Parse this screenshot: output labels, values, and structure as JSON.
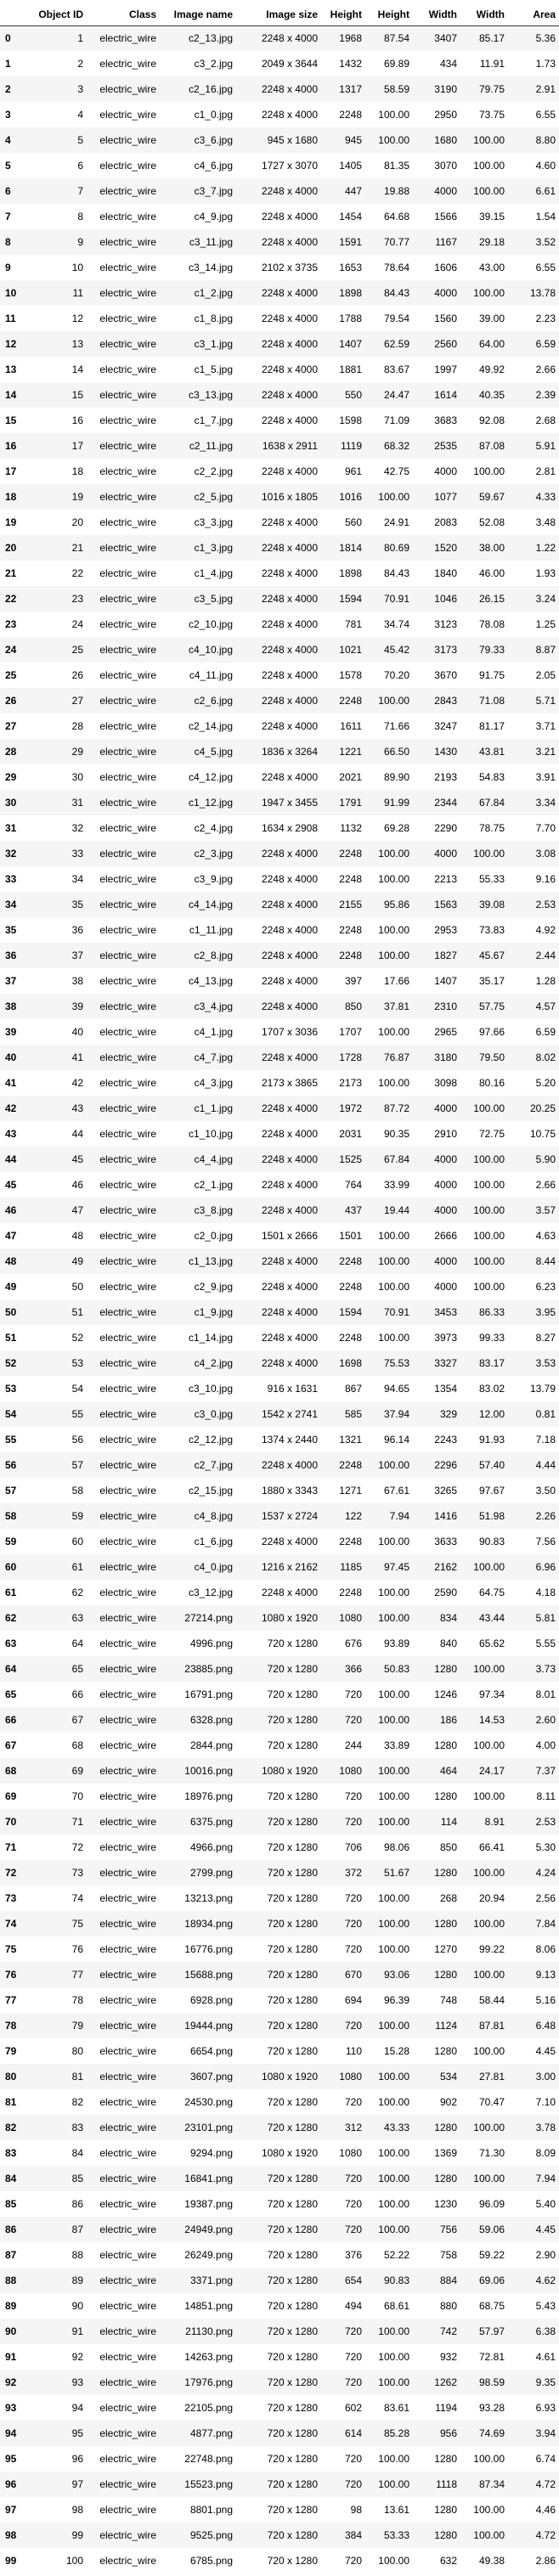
{
  "table": {
    "columns": [
      "",
      "Object ID",
      "Class",
      "Image name",
      "Image size",
      "Height",
      "Height",
      "Width",
      "Width",
      "Area"
    ],
    "rows": [
      [
        "0",
        "1",
        "electric_wire",
        "c2_13.jpg",
        "2248 x 4000",
        "1968",
        "87.54",
        "3407",
        "85.17",
        "5.36"
      ],
      [
        "1",
        "2",
        "electric_wire",
        "c3_2.jpg",
        "2049 x 3644",
        "1432",
        "69.89",
        "434",
        "11.91",
        "1.73"
      ],
      [
        "2",
        "3",
        "electric_wire",
        "c2_16.jpg",
        "2248 x 4000",
        "1317",
        "58.59",
        "3190",
        "79.75",
        "2.91"
      ],
      [
        "3",
        "4",
        "electric_wire",
        "c1_0.jpg",
        "2248 x 4000",
        "2248",
        "100.00",
        "2950",
        "73.75",
        "6.55"
      ],
      [
        "4",
        "5",
        "electric_wire",
        "c3_6.jpg",
        "945 x 1680",
        "945",
        "100.00",
        "1680",
        "100.00",
        "8.80"
      ],
      [
        "5",
        "6",
        "electric_wire",
        "c4_6.jpg",
        "1727 x 3070",
        "1405",
        "81.35",
        "3070",
        "100.00",
        "4.60"
      ],
      [
        "6",
        "7",
        "electric_wire",
        "c3_7.jpg",
        "2248 x 4000",
        "447",
        "19.88",
        "4000",
        "100.00",
        "6.61"
      ],
      [
        "7",
        "8",
        "electric_wire",
        "c4_9.jpg",
        "2248 x 4000",
        "1454",
        "64.68",
        "1566",
        "39.15",
        "1.54"
      ],
      [
        "8",
        "9",
        "electric_wire",
        "c3_11.jpg",
        "2248 x 4000",
        "1591",
        "70.77",
        "1167",
        "29.18",
        "3.52"
      ],
      [
        "9",
        "10",
        "electric_wire",
        "c3_14.jpg",
        "2102 x 3735",
        "1653",
        "78.64",
        "1606",
        "43.00",
        "6.55"
      ],
      [
        "10",
        "11",
        "electric_wire",
        "c1_2.jpg",
        "2248 x 4000",
        "1898",
        "84.43",
        "4000",
        "100.00",
        "13.78"
      ],
      [
        "11",
        "12",
        "electric_wire",
        "c1_8.jpg",
        "2248 x 4000",
        "1788",
        "79.54",
        "1560",
        "39.00",
        "2.23"
      ],
      [
        "12",
        "13",
        "electric_wire",
        "c3_1.jpg",
        "2248 x 4000",
        "1407",
        "62.59",
        "2560",
        "64.00",
        "6.59"
      ],
      [
        "13",
        "14",
        "electric_wire",
        "c1_5.jpg",
        "2248 x 4000",
        "1881",
        "83.67",
        "1997",
        "49.92",
        "2.66"
      ],
      [
        "14",
        "15",
        "electric_wire",
        "c3_13.jpg",
        "2248 x 4000",
        "550",
        "24.47",
        "1614",
        "40.35",
        "2.39"
      ],
      [
        "15",
        "16",
        "electric_wire",
        "c1_7.jpg",
        "2248 x 4000",
        "1598",
        "71.09",
        "3683",
        "92.08",
        "2.68"
      ],
      [
        "16",
        "17",
        "electric_wire",
        "c2_11.jpg",
        "1638 x 2911",
        "1119",
        "68.32",
        "2535",
        "87.08",
        "5.91"
      ],
      [
        "17",
        "18",
        "electric_wire",
        "c2_2.jpg",
        "2248 x 4000",
        "961",
        "42.75",
        "4000",
        "100.00",
        "2.81"
      ],
      [
        "18",
        "19",
        "electric_wire",
        "c2_5.jpg",
        "1016 x 1805",
        "1016",
        "100.00",
        "1077",
        "59.67",
        "4.33"
      ],
      [
        "19",
        "20",
        "electric_wire",
        "c3_3.jpg",
        "2248 x 4000",
        "560",
        "24.91",
        "2083",
        "52.08",
        "3.48"
      ],
      [
        "20",
        "21",
        "electric_wire",
        "c1_3.jpg",
        "2248 x 4000",
        "1814",
        "80.69",
        "1520",
        "38.00",
        "1.22"
      ],
      [
        "21",
        "22",
        "electric_wire",
        "c1_4.jpg",
        "2248 x 4000",
        "1898",
        "84.43",
        "1840",
        "46.00",
        "1.93"
      ],
      [
        "22",
        "23",
        "electric_wire",
        "c3_5.jpg",
        "2248 x 4000",
        "1594",
        "70.91",
        "1046",
        "26.15",
        "3.24"
      ],
      [
        "23",
        "24",
        "electric_wire",
        "c2_10.jpg",
        "2248 x 4000",
        "781",
        "34.74",
        "3123",
        "78.08",
        "1.25"
      ],
      [
        "24",
        "25",
        "electric_wire",
        "c4_10.jpg",
        "2248 x 4000",
        "1021",
        "45.42",
        "3173",
        "79.33",
        "8.87"
      ],
      [
        "25",
        "26",
        "electric_wire",
        "c4_11.jpg",
        "2248 x 4000",
        "1578",
        "70.20",
        "3670",
        "91.75",
        "2.05"
      ],
      [
        "26",
        "27",
        "electric_wire",
        "c2_6.jpg",
        "2248 x 4000",
        "2248",
        "100.00",
        "2843",
        "71.08",
        "5.71"
      ],
      [
        "27",
        "28",
        "electric_wire",
        "c2_14.jpg",
        "2248 x 4000",
        "1611",
        "71.66",
        "3247",
        "81.17",
        "3.71"
      ],
      [
        "28",
        "29",
        "electric_wire",
        "c4_5.jpg",
        "1836 x 3264",
        "1221",
        "66.50",
        "1430",
        "43.81",
        "3.21"
      ],
      [
        "29",
        "30",
        "electric_wire",
        "c4_12.jpg",
        "2248 x 4000",
        "2021",
        "89.90",
        "2193",
        "54.83",
        "3.91"
      ],
      [
        "30",
        "31",
        "electric_wire",
        "c1_12.jpg",
        "1947 x 3455",
        "1791",
        "91.99",
        "2344",
        "67.84",
        "3.34"
      ],
      [
        "31",
        "32",
        "electric_wire",
        "c2_4.jpg",
        "1634 x 2908",
        "1132",
        "69.28",
        "2290",
        "78.75",
        "7.70"
      ],
      [
        "32",
        "33",
        "electric_wire",
        "c2_3.jpg",
        "2248 x 4000",
        "2248",
        "100.00",
        "4000",
        "100.00",
        "3.08"
      ],
      [
        "33",
        "34",
        "electric_wire",
        "c3_9.jpg",
        "2248 x 4000",
        "2248",
        "100.00",
        "2213",
        "55.33",
        "9.16"
      ],
      [
        "34",
        "35",
        "electric_wire",
        "c4_14.jpg",
        "2248 x 4000",
        "2155",
        "95.86",
        "1563",
        "39.08",
        "2.53"
      ],
      [
        "35",
        "36",
        "electric_wire",
        "c1_11.jpg",
        "2248 x 4000",
        "2248",
        "100.00",
        "2953",
        "73.83",
        "4.92"
      ],
      [
        "36",
        "37",
        "electric_wire",
        "c2_8.jpg",
        "2248 x 4000",
        "2248",
        "100.00",
        "1827",
        "45.67",
        "2.44"
      ],
      [
        "37",
        "38",
        "electric_wire",
        "c4_13.jpg",
        "2248 x 4000",
        "397",
        "17.66",
        "1407",
        "35.17",
        "1.28"
      ],
      [
        "38",
        "39",
        "electric_wire",
        "c3_4.jpg",
        "2248 x 4000",
        "850",
        "37.81",
        "2310",
        "57.75",
        "4.57"
      ],
      [
        "39",
        "40",
        "electric_wire",
        "c4_1.jpg",
        "1707 x 3036",
        "1707",
        "100.00",
        "2965",
        "97.66",
        "6.59"
      ],
      [
        "40",
        "41",
        "electric_wire",
        "c4_7.jpg",
        "2248 x 4000",
        "1728",
        "76.87",
        "3180",
        "79.50",
        "8.02"
      ],
      [
        "41",
        "42",
        "electric_wire",
        "c4_3.jpg",
        "2173 x 3865",
        "2173",
        "100.00",
        "3098",
        "80.16",
        "5.20"
      ],
      [
        "42",
        "43",
        "electric_wire",
        "c1_1.jpg",
        "2248 x 4000",
        "1972",
        "87.72",
        "4000",
        "100.00",
        "20.25"
      ],
      [
        "43",
        "44",
        "electric_wire",
        "c1_10.jpg",
        "2248 x 4000",
        "2031",
        "90.35",
        "2910",
        "72.75",
        "10.75"
      ],
      [
        "44",
        "45",
        "electric_wire",
        "c4_4.jpg",
        "2248 x 4000",
        "1525",
        "67.84",
        "4000",
        "100.00",
        "5.90"
      ],
      [
        "45",
        "46",
        "electric_wire",
        "c2_1.jpg",
        "2248 x 4000",
        "764",
        "33.99",
        "4000",
        "100.00",
        "2.66"
      ],
      [
        "46",
        "47",
        "electric_wire",
        "c3_8.jpg",
        "2248 x 4000",
        "437",
        "19.44",
        "4000",
        "100.00",
        "3.57"
      ],
      [
        "47",
        "48",
        "electric_wire",
        "c2_0.jpg",
        "1501 x 2666",
        "1501",
        "100.00",
        "2666",
        "100.00",
        "4.63"
      ],
      [
        "48",
        "49",
        "electric_wire",
        "c1_13.jpg",
        "2248 x 4000",
        "2248",
        "100.00",
        "4000",
        "100.00",
        "8.44"
      ],
      [
        "49",
        "50",
        "electric_wire",
        "c2_9.jpg",
        "2248 x 4000",
        "2248",
        "100.00",
        "4000",
        "100.00",
        "6.23"
      ],
      [
        "50",
        "51",
        "electric_wire",
        "c1_9.jpg",
        "2248 x 4000",
        "1594",
        "70.91",
        "3453",
        "86.33",
        "3.95"
      ],
      [
        "51",
        "52",
        "electric_wire",
        "c1_14.jpg",
        "2248 x 4000",
        "2248",
        "100.00",
        "3973",
        "99.33",
        "8.27"
      ],
      [
        "52",
        "53",
        "electric_wire",
        "c4_2.jpg",
        "2248 x 4000",
        "1698",
        "75.53",
        "3327",
        "83.17",
        "3.53"
      ],
      [
        "53",
        "54",
        "electric_wire",
        "c3_10.jpg",
        "916 x 1631",
        "867",
        "94.65",
        "1354",
        "83.02",
        "13.79"
      ],
      [
        "54",
        "55",
        "electric_wire",
        "c3_0.jpg",
        "1542 x 2741",
        "585",
        "37.94",
        "329",
        "12.00",
        "0.81"
      ],
      [
        "55",
        "56",
        "electric_wire",
        "c2_12.jpg",
        "1374 x 2440",
        "1321",
        "96.14",
        "2243",
        "91.93",
        "7.18"
      ],
      [
        "56",
        "57",
        "electric_wire",
        "c2_7.jpg",
        "2248 x 4000",
        "2248",
        "100.00",
        "2296",
        "57.40",
        "4.44"
      ],
      [
        "57",
        "58",
        "electric_wire",
        "c2_15.jpg",
        "1880 x 3343",
        "1271",
        "67.61",
        "3265",
        "97.67",
        "3.50"
      ],
      [
        "58",
        "59",
        "electric_wire",
        "c4_8.jpg",
        "1537 x 2724",
        "122",
        "7.94",
        "1416",
        "51.98",
        "2.26"
      ],
      [
        "59",
        "60",
        "electric_wire",
        "c1_6.jpg",
        "2248 x 4000",
        "2248",
        "100.00",
        "3633",
        "90.83",
        "7.56"
      ],
      [
        "60",
        "61",
        "electric_wire",
        "c4_0.jpg",
        "1216 x 2162",
        "1185",
        "97.45",
        "2162",
        "100.00",
        "6.96"
      ],
      [
        "61",
        "62",
        "electric_wire",
        "c3_12.jpg",
        "2248 x 4000",
        "2248",
        "100.00",
        "2590",
        "64.75",
        "4.18"
      ],
      [
        "62",
        "63",
        "electric_wire",
        "27214.png",
        "1080 x 1920",
        "1080",
        "100.00",
        "834",
        "43.44",
        "5.81"
      ],
      [
        "63",
        "64",
        "electric_wire",
        "4996.png",
        "720 x 1280",
        "676",
        "93.89",
        "840",
        "65.62",
        "5.55"
      ],
      [
        "64",
        "65",
        "electric_wire",
        "23885.png",
        "720 x 1280",
        "366",
        "50.83",
        "1280",
        "100.00",
        "3.73"
      ],
      [
        "65",
        "66",
        "electric_wire",
        "16791.png",
        "720 x 1280",
        "720",
        "100.00",
        "1246",
        "97.34",
        "8.01"
      ],
      [
        "66",
        "67",
        "electric_wire",
        "6328.png",
        "720 x 1280",
        "720",
        "100.00",
        "186",
        "14.53",
        "2.60"
      ],
      [
        "67",
        "68",
        "electric_wire",
        "2844.png",
        "720 x 1280",
        "244",
        "33.89",
        "1280",
        "100.00",
        "4.00"
      ],
      [
        "68",
        "69",
        "electric_wire",
        "10016.png",
        "1080 x 1920",
        "1080",
        "100.00",
        "464",
        "24.17",
        "7.37"
      ],
      [
        "69",
        "70",
        "electric_wire",
        "18976.png",
        "720 x 1280",
        "720",
        "100.00",
        "1280",
        "100.00",
        "8.11"
      ],
      [
        "70",
        "71",
        "electric_wire",
        "6375.png",
        "720 x 1280",
        "720",
        "100.00",
        "114",
        "8.91",
        "2.53"
      ],
      [
        "71",
        "72",
        "electric_wire",
        "4966.png",
        "720 x 1280",
        "706",
        "98.06",
        "850",
        "66.41",
        "5.30"
      ],
      [
        "72",
        "73",
        "electric_wire",
        "2799.png",
        "720 x 1280",
        "372",
        "51.67",
        "1280",
        "100.00",
        "4.24"
      ],
      [
        "73",
        "74",
        "electric_wire",
        "13213.png",
        "720 x 1280",
        "720",
        "100.00",
        "268",
        "20.94",
        "2.56"
      ],
      [
        "74",
        "75",
        "electric_wire",
        "18934.png",
        "720 x 1280",
        "720",
        "100.00",
        "1280",
        "100.00",
        "7.84"
      ],
      [
        "75",
        "76",
        "electric_wire",
        "16776.png",
        "720 x 1280",
        "720",
        "100.00",
        "1270",
        "99.22",
        "8.06"
      ],
      [
        "76",
        "77",
        "electric_wire",
        "15688.png",
        "720 x 1280",
        "670",
        "93.06",
        "1280",
        "100.00",
        "9.13"
      ],
      [
        "77",
        "78",
        "electric_wire",
        "6928.png",
        "720 x 1280",
        "694",
        "96.39",
        "748",
        "58.44",
        "5.16"
      ],
      [
        "78",
        "79",
        "electric_wire",
        "19444.png",
        "720 x 1280",
        "720",
        "100.00",
        "1124",
        "87.81",
        "6.48"
      ],
      [
        "79",
        "80",
        "electric_wire",
        "6654.png",
        "720 x 1280",
        "110",
        "15.28",
        "1280",
        "100.00",
        "4.45"
      ],
      [
        "80",
        "81",
        "electric_wire",
        "3607.png",
        "1080 x 1920",
        "1080",
        "100.00",
        "534",
        "27.81",
        "3.00"
      ],
      [
        "81",
        "82",
        "electric_wire",
        "24530.png",
        "720 x 1280",
        "720",
        "100.00",
        "902",
        "70.47",
        "7.10"
      ],
      [
        "82",
        "83",
        "electric_wire",
        "23101.png",
        "720 x 1280",
        "312",
        "43.33",
        "1280",
        "100.00",
        "3.78"
      ],
      [
        "83",
        "84",
        "electric_wire",
        "9294.png",
        "1080 x 1920",
        "1080",
        "100.00",
        "1369",
        "71.30",
        "8.09"
      ],
      [
        "84",
        "85",
        "electric_wire",
        "16841.png",
        "720 x 1280",
        "720",
        "100.00",
        "1280",
        "100.00",
        "7.94"
      ],
      [
        "85",
        "86",
        "electric_wire",
        "19387.png",
        "720 x 1280",
        "720",
        "100.00",
        "1230",
        "96.09",
        "5.40"
      ],
      [
        "86",
        "87",
        "electric_wire",
        "24949.png",
        "720 x 1280",
        "720",
        "100.00",
        "756",
        "59.06",
        "4.45"
      ],
      [
        "87",
        "88",
        "electric_wire",
        "26249.png",
        "720 x 1280",
        "376",
        "52.22",
        "758",
        "59.22",
        "2.90"
      ],
      [
        "88",
        "89",
        "electric_wire",
        "3371.png",
        "720 x 1280",
        "654",
        "90.83",
        "884",
        "69.06",
        "4.62"
      ],
      [
        "89",
        "90",
        "electric_wire",
        "14851.png",
        "720 x 1280",
        "494",
        "68.61",
        "880",
        "68.75",
        "5.43"
      ],
      [
        "90",
        "91",
        "electric_wire",
        "21130.png",
        "720 x 1280",
        "720",
        "100.00",
        "742",
        "57.97",
        "6.38"
      ],
      [
        "91",
        "92",
        "electric_wire",
        "14263.png",
        "720 x 1280",
        "720",
        "100.00",
        "932",
        "72.81",
        "4.61"
      ],
      [
        "92",
        "93",
        "electric_wire",
        "17976.png",
        "720 x 1280",
        "720",
        "100.00",
        "1262",
        "98.59",
        "9.35"
      ],
      [
        "93",
        "94",
        "electric_wire",
        "22105.png",
        "720 x 1280",
        "602",
        "83.61",
        "1194",
        "93.28",
        "6.93"
      ],
      [
        "94",
        "95",
        "electric_wire",
        "4877.png",
        "720 x 1280",
        "614",
        "85.28",
        "956",
        "74.69",
        "3.94"
      ],
      [
        "95",
        "96",
        "electric_wire",
        "22748.png",
        "720 x 1280",
        "720",
        "100.00",
        "1280",
        "100.00",
        "6.74"
      ],
      [
        "96",
        "97",
        "electric_wire",
        "15523.png",
        "720 x 1280",
        "720",
        "100.00",
        "1118",
        "87.34",
        "4.72"
      ],
      [
        "97",
        "98",
        "electric_wire",
        "8801.png",
        "720 x 1280",
        "98",
        "13.61",
        "1280",
        "100.00",
        "4.46"
      ],
      [
        "98",
        "99",
        "electric_wire",
        "9525.png",
        "720 x 1280",
        "384",
        "53.33",
        "1280",
        "100.00",
        "4.72"
      ],
      [
        "99",
        "100",
        "electric_wire",
        "6785.png",
        "720 x 1280",
        "720",
        "100.00",
        "632",
        "49.38",
        "2.86"
      ]
    ]
  }
}
